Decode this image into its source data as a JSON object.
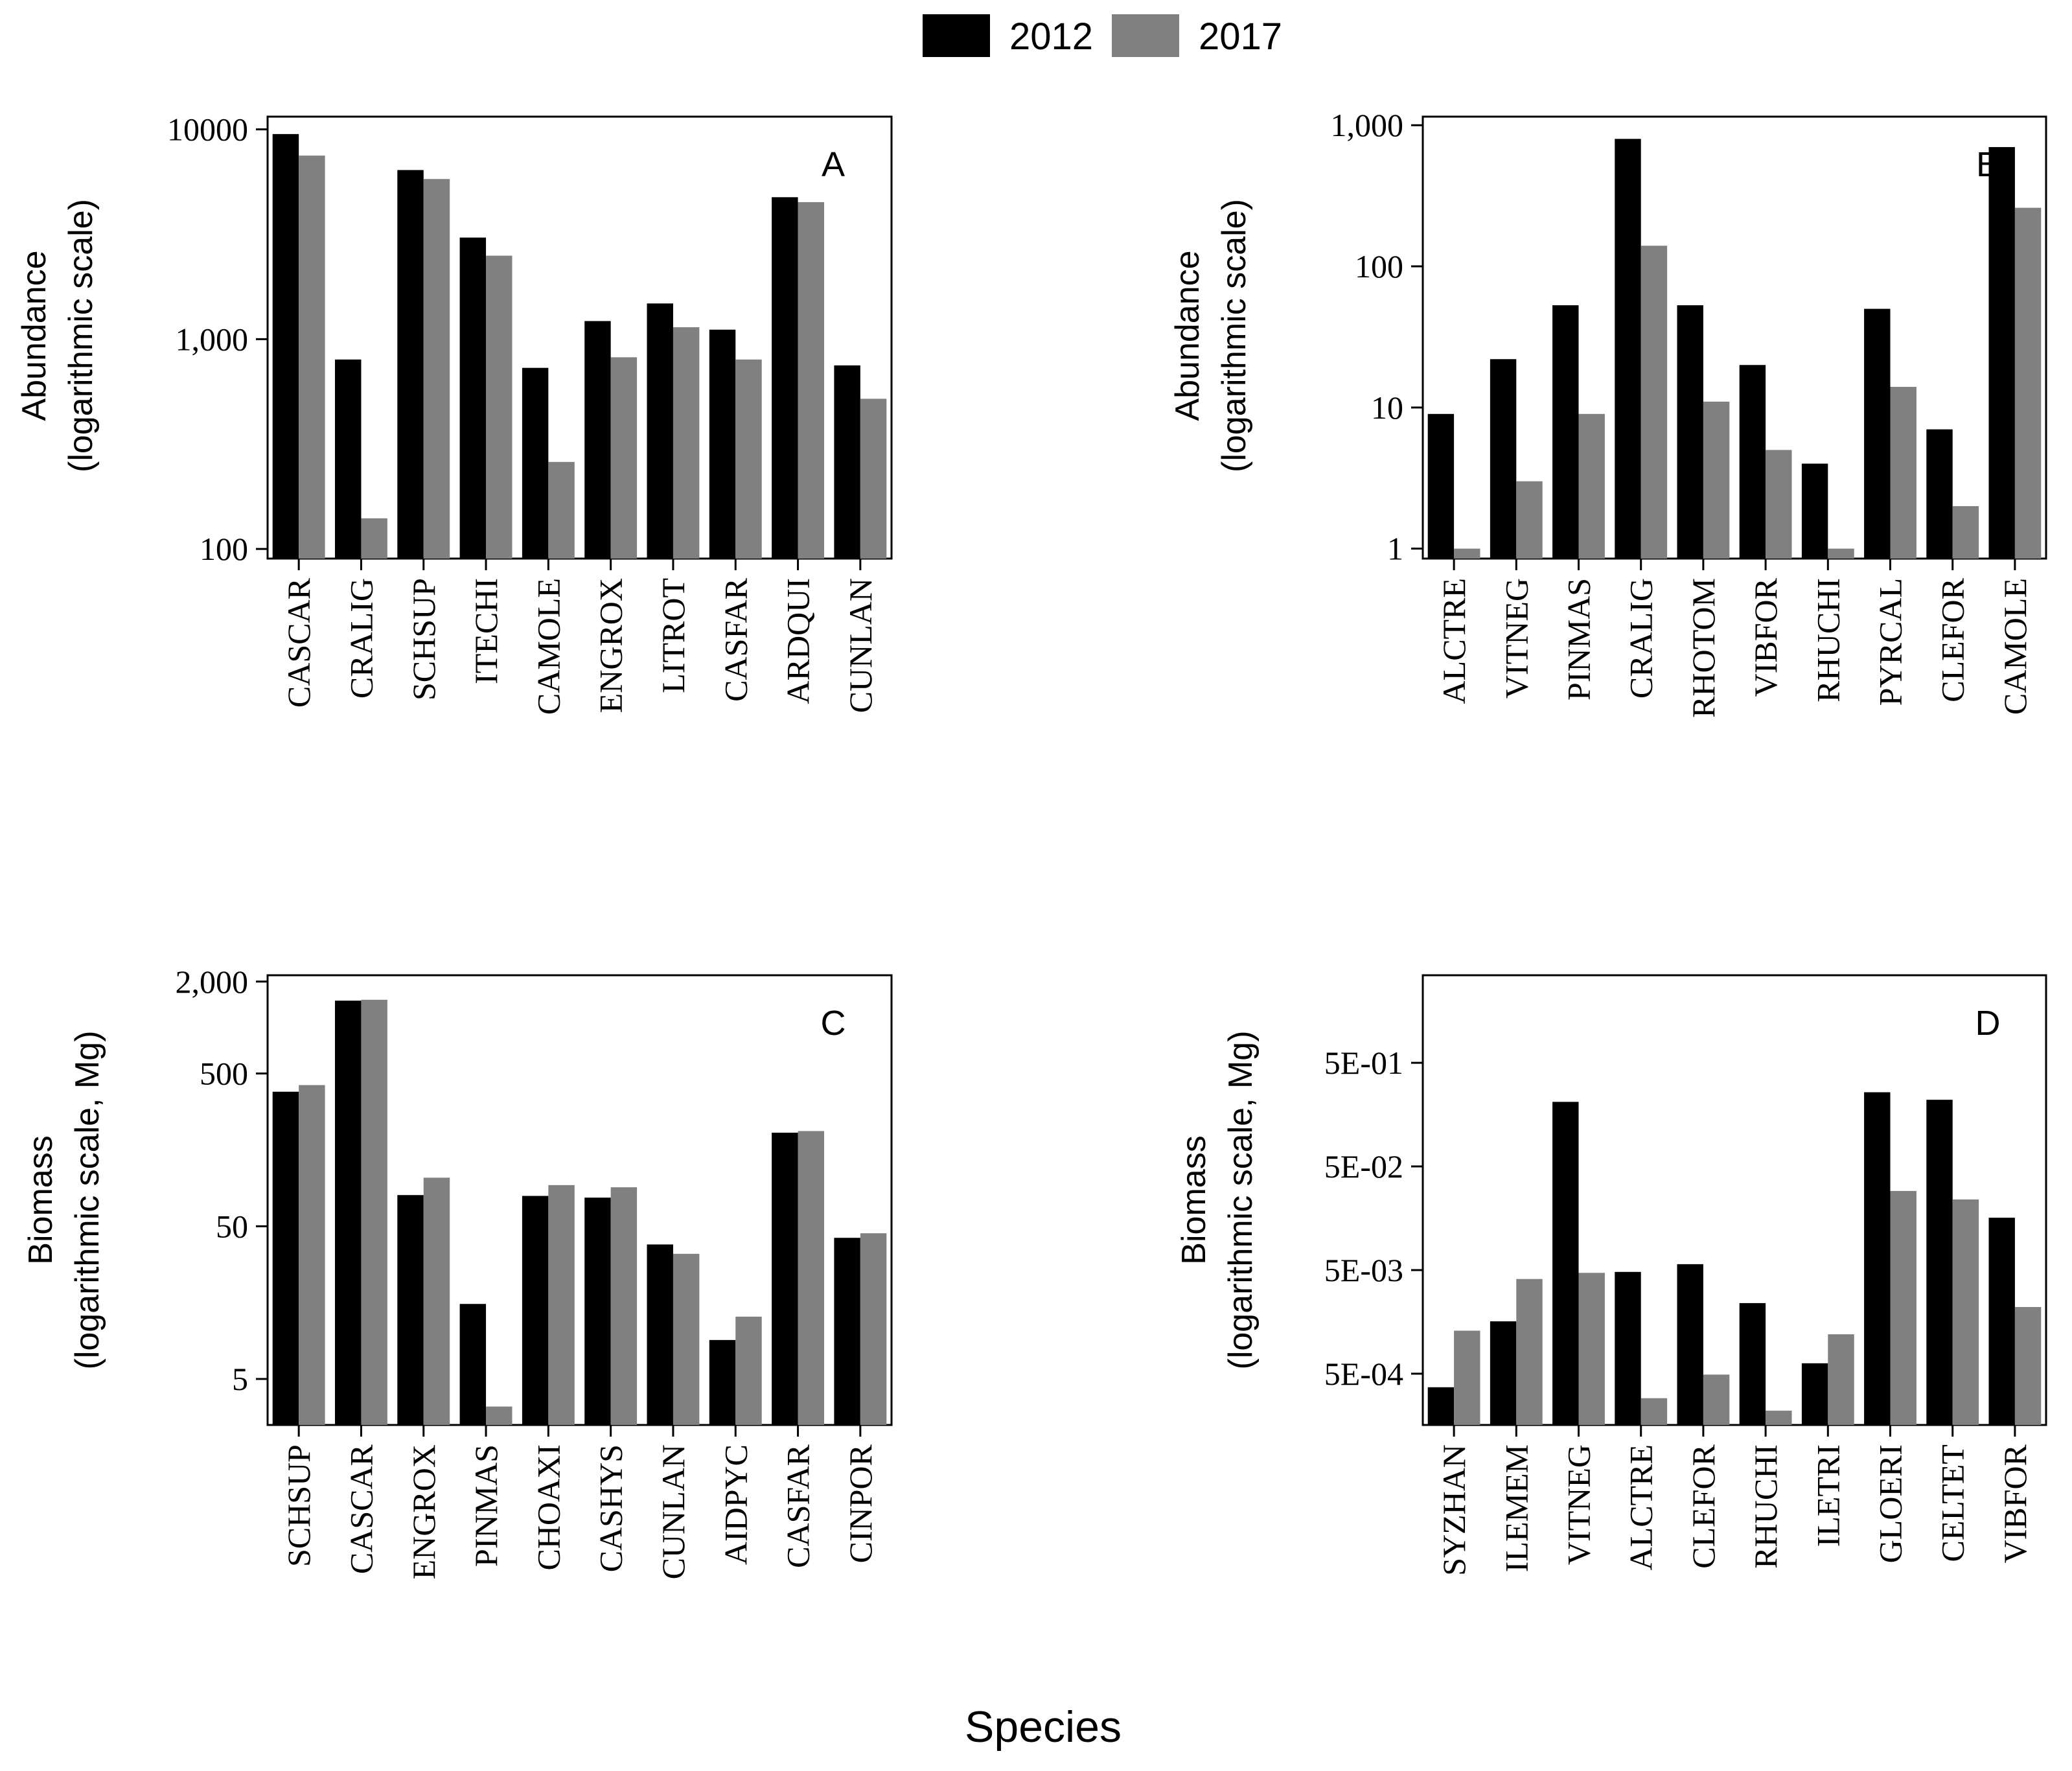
{
  "legend": {
    "items": [
      {
        "label": "2012",
        "color": "#000000"
      },
      {
        "label": "2017",
        "color": "#808080"
      }
    ]
  },
  "x_axis_title": "Species",
  "chart_data": [
    {
      "type": "bar",
      "panel": "A",
      "scale": "log",
      "ylabel_line1": "Abundance",
      "ylabel_line2": "(logarithmic scale)",
      "ylim": [
        90,
        11500
      ],
      "yticks": [
        {
          "value": 100,
          "label": "100"
        },
        {
          "value": 1000,
          "label": "1,000"
        },
        {
          "value": 10000,
          "label": "10000"
        }
      ],
      "categories": [
        "CASCAR",
        "CRALIG",
        "SCHSUP",
        "ITECHI",
        "CAMOLE",
        "ENGROX",
        "LITROT",
        "CASFAR",
        "ARDQUI",
        "CUNLAN"
      ],
      "series": [
        {
          "name": "2012",
          "values": [
            9500,
            800,
            6400,
            3050,
            730,
            1220,
            1480,
            1110,
            4750,
            750
          ]
        },
        {
          "name": "2017",
          "values": [
            7500,
            140,
            5800,
            2500,
            260,
            820,
            1140,
            800,
            4500,
            520
          ]
        }
      ]
    },
    {
      "type": "bar",
      "panel": "B",
      "scale": "log",
      "ylabel_line1": "Abundance",
      "ylabel_line2": "(logarithmic scale)",
      "ylim": [
        0.85,
        1150
      ],
      "yticks": [
        {
          "value": 1,
          "label": "1"
        },
        {
          "value": 10,
          "label": "10"
        },
        {
          "value": 100,
          "label": "100"
        },
        {
          "value": 1000,
          "label": "1,000"
        }
      ],
      "categories": [
        "ALCTRE",
        "VITNEG",
        "PINMAS",
        "CRALIG",
        "RHOTOM",
        "VIBFOR",
        "RHUCHI",
        "PYRCAL",
        "CLEFOR",
        "CAMOLE"
      ],
      "series": [
        {
          "name": "2012",
          "values": [
            9,
            22,
            53,
            800,
            53,
            20,
            4,
            50,
            7,
            700
          ]
        },
        {
          "name": "2017",
          "values": [
            1,
            3,
            9,
            140,
            11,
            5,
            1,
            14,
            2,
            260
          ]
        }
      ]
    },
    {
      "type": "bar",
      "panel": "C",
      "scale": "log",
      "ylabel_line1": "Biomass",
      "ylabel_line2": "(logarithmic scale, Mg)",
      "ylim": [
        2.5,
        2200
      ],
      "yticks": [
        {
          "value": 5,
          "label": "5"
        },
        {
          "value": 50,
          "label": "50"
        },
        {
          "value": 500,
          "label": "500"
        },
        {
          "value": 2000,
          "label": "2,000"
        }
      ],
      "categories": [
        "SCHSUP",
        "CASCAR",
        "ENGROX",
        "PINMAS",
        "CHOAXI",
        "CASHYS",
        "CUNLAN",
        "AIDPYC",
        "CASFAR",
        "CINPOR"
      ],
      "series": [
        {
          "name": "2012",
          "values": [
            380,
            1500,
            80,
            15.5,
            79,
            77,
            38,
            9,
            205,
            42
          ]
        },
        {
          "name": "2017",
          "values": [
            420,
            1520,
            104,
            3.3,
            93,
            90,
            33,
            12.8,
            210,
            45
          ]
        }
      ]
    },
    {
      "type": "bar",
      "panel": "D",
      "scale": "log",
      "ylabel_line1": "Biomass",
      "ylabel_line2": "(logarithmic scale, Mg)",
      "ylim": [
        0.00016,
        3.5
      ],
      "yticks": [
        {
          "value": 0.0005,
          "label": "5E-04"
        },
        {
          "value": 0.005,
          "label": "5E-03"
        },
        {
          "value": 0.05,
          "label": "5E-02"
        },
        {
          "value": 0.5,
          "label": "5E-01"
        }
      ],
      "categories": [
        "SYZHAN",
        "ILEMEM",
        "VITNEG",
        "ALCTRE",
        "CLEFOR",
        "RHUCHI",
        "ILETRI",
        "GLOERI",
        "CELTET",
        "VIBFOR"
      ],
      "series": [
        {
          "name": "2012",
          "values": [
            0.00037,
            0.0016,
            0.21,
            0.0048,
            0.0057,
            0.0024,
            0.00063,
            0.26,
            0.22,
            0.016
          ]
        },
        {
          "name": "2017",
          "values": [
            0.0013,
            0.0041,
            0.0047,
            0.00029,
            0.00049,
            0.00022,
            0.0012,
            0.029,
            0.024,
            0.0022
          ]
        }
      ]
    }
  ]
}
